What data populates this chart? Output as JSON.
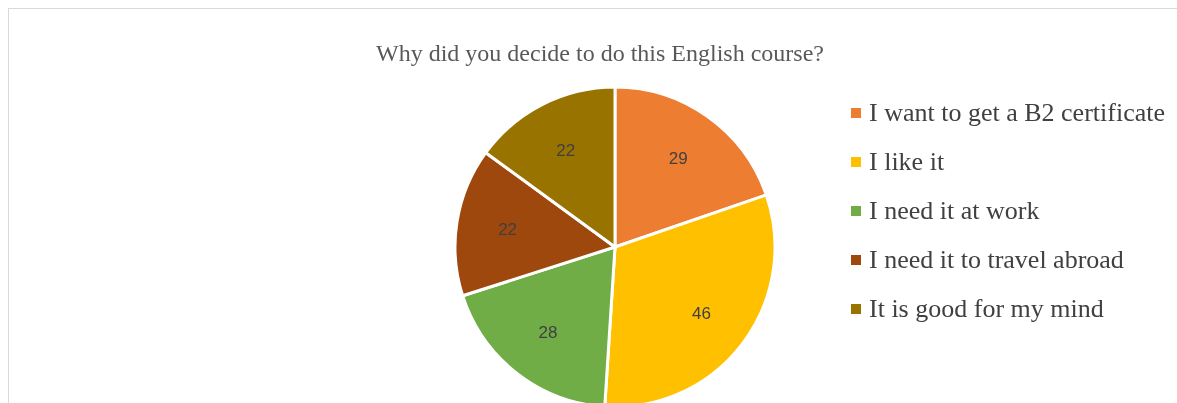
{
  "chart_data": {
    "type": "pie",
    "title": "Why did you decide to do this English course?",
    "categories": [
      "I want to get a B2 certificate",
      "I like it",
      "I need it at work",
      "I need it to travel abroad",
      "It is good for my mind"
    ],
    "values": [
      29,
      46,
      28,
      22,
      22
    ],
    "colors": [
      "#ed7d31",
      "#ffc000",
      "#70ad47",
      "#9e480e",
      "#997300"
    ],
    "data_labels": true,
    "legend": "right"
  }
}
